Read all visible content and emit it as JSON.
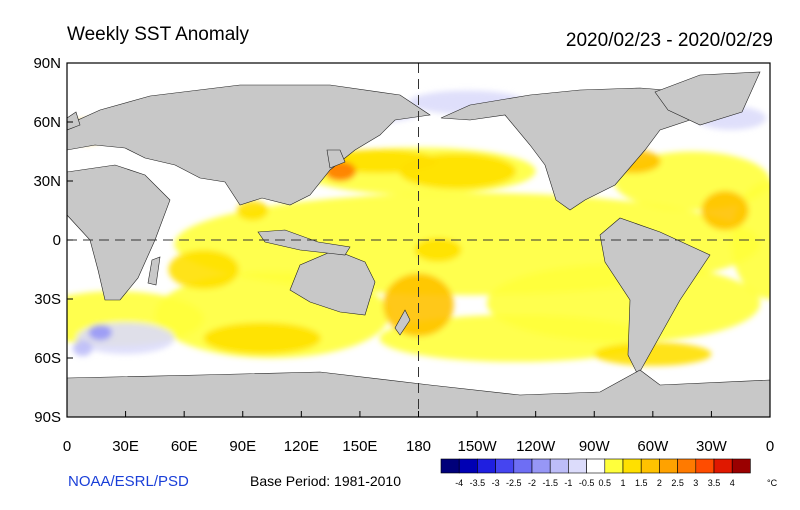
{
  "title": "Weekly SST Anomaly",
  "date_range": "2020/02/23 - 2020/02/29",
  "credit": "NOAA/ESRL/PSD",
  "base_period": "Base Period: 1981-2010",
  "colors": {
    "land": "#c8c8c8",
    "ocean_background": "#ffffff",
    "coastline": "#222222",
    "reference_lines": "#333333"
  },
  "map": {
    "projection": "equirectangular",
    "longitude_range": [
      0,
      360
    ],
    "latitude_range": [
      -90,
      90
    ],
    "x_tick_labels": [
      "0",
      "30E",
      "60E",
      "90E",
      "120E",
      "150E",
      "180",
      "150W",
      "120W",
      "90W",
      "60W",
      "30W",
      "0"
    ],
    "y_tick_labels": [
      "90N",
      "60N",
      "30N",
      "0",
      "30S",
      "60S",
      "90S"
    ],
    "reference_lines": [
      "equator",
      "date line (180)"
    ]
  },
  "legend": {
    "unit": "°C",
    "tick_labels": [
      "-4",
      "-3.5",
      "-3",
      "-2.5",
      "-2",
      "-1.5",
      "-1",
      "-0.5",
      "0.5",
      "1",
      "1.5",
      "2",
      "2.5",
      "3",
      "3.5",
      "4"
    ],
    "colors": [
      "#00007a",
      "#0000b4",
      "#1f1fe0",
      "#4545f0",
      "#6e6ef4",
      "#9797f6",
      "#bdbdf8",
      "#dcdcfb",
      "#ffffff",
      "#ffff3c",
      "#ffe000",
      "#ffc200",
      "#ffa200",
      "#ff7a00",
      "#ff4c00",
      "#e01800",
      "#9a0000"
    ]
  },
  "anomaly_regions": [
    {
      "lon": 205,
      "lat": -2,
      "rx": 150,
      "ry": 26,
      "level": 1
    },
    {
      "lon": 285,
      "lat": -32,
      "rx": 70,
      "ry": 20,
      "level": 1
    },
    {
      "lon": 180,
      "lat": 35,
      "rx": 60,
      "ry": 12,
      "level": 1
    },
    {
      "lon": 105,
      "lat": -38,
      "rx": 60,
      "ry": 22,
      "level": 1
    },
    {
      "lon": 25,
      "lat": -40,
      "rx": 45,
      "ry": 14,
      "level": 1
    },
    {
      "lon": 320,
      "lat": 30,
      "rx": 40,
      "ry": 15,
      "level": 1
    },
    {
      "lon": 360,
      "lat": 0,
      "rx": 20,
      "ry": 30,
      "level": 1
    },
    {
      "lon": 230,
      "lat": -50,
      "rx": 70,
      "ry": 12,
      "level": 1
    },
    {
      "lon": 200,
      "lat": 35,
      "rx": 30,
      "ry": 9,
      "level": 2
    },
    {
      "lon": 160,
      "lat": 40,
      "rx": 30,
      "ry": 6,
      "level": 2
    },
    {
      "lon": 70,
      "lat": -15,
      "rx": 18,
      "ry": 10,
      "level": 2
    },
    {
      "lon": 180,
      "lat": -33,
      "rx": 18,
      "ry": 16,
      "level": 3
    },
    {
      "lon": 100,
      "lat": -50,
      "rx": 30,
      "ry": 8,
      "level": 2
    },
    {
      "lon": 300,
      "lat": -58,
      "rx": 30,
      "ry": 6,
      "level": 2
    },
    {
      "lon": 337,
      "lat": 15,
      "rx": 12,
      "ry": 10,
      "level": 3
    },
    {
      "lon": 290,
      "lat": 40,
      "rx": 14,
      "ry": 6,
      "level": 3
    },
    {
      "lon": 140,
      "lat": 35,
      "rx": 8,
      "ry": 5,
      "level": 5
    },
    {
      "lon": 10,
      "lat": 55,
      "rx": 10,
      "ry": 6,
      "level": 3
    },
    {
      "lon": 95,
      "lat": 15,
      "rx": 8,
      "ry": 5,
      "level": 2
    },
    {
      "lon": 190,
      "lat": -5,
      "rx": 12,
      "ry": 6,
      "level": 2
    },
    {
      "lon": 205,
      "lat": 70,
      "rx": 30,
      "ry": 6,
      "level": -1
    },
    {
      "lon": 30,
      "lat": -50,
      "rx": 25,
      "ry": 8,
      "level": -1
    },
    {
      "lon": 340,
      "lat": 62,
      "rx": 18,
      "ry": 6,
      "level": -1
    },
    {
      "lon": 160,
      "lat": 65,
      "rx": 20,
      "ry": 5,
      "level": -1
    },
    {
      "lon": 17,
      "lat": -47,
      "rx": 6,
      "ry": 4,
      "level": -3
    },
    {
      "lon": 8,
      "lat": -55,
      "rx": 5,
      "ry": 4,
      "level": -2
    }
  ]
}
